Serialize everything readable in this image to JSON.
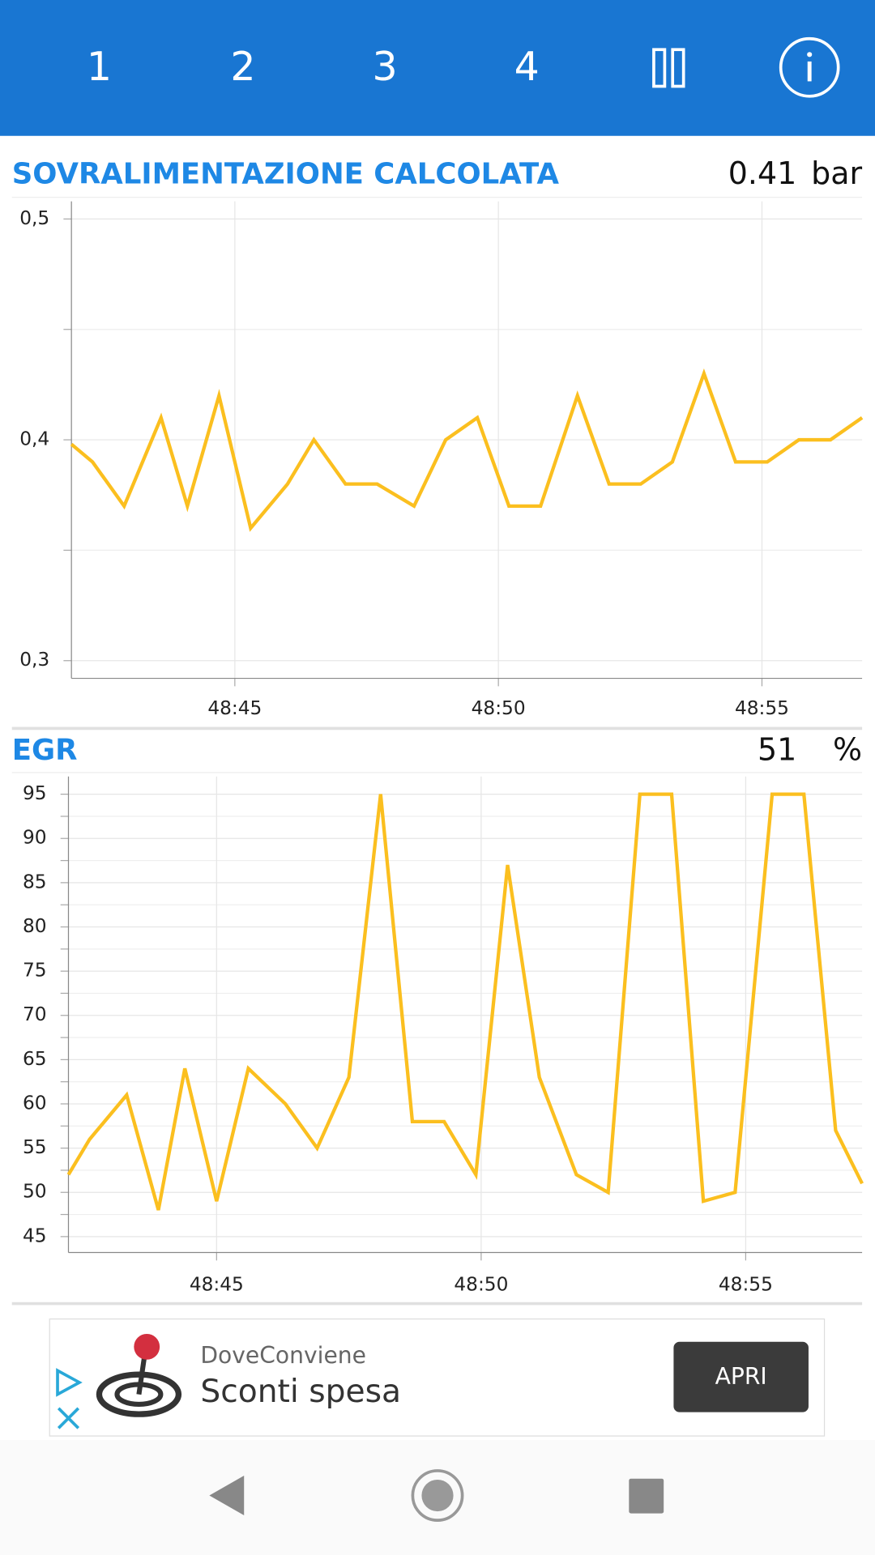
{
  "toolbar": {
    "tabs": [
      "1",
      "2",
      "3",
      "4"
    ]
  },
  "chart_data": [
    {
      "type": "line",
      "title": "SOVRALIMENTAZIONE CALCOLATA",
      "value": "0.41",
      "unit": "bar",
      "x": [
        2921.9,
        2922.3,
        2922.9,
        2923.6,
        2924.1,
        2924.7,
        2925.3,
        2926.0,
        2926.5,
        2927.1,
        2927.7,
        2928.4,
        2929.0,
        2929.6,
        2930.2,
        2930.8,
        2931.5,
        2932.1,
        2932.7,
        2933.3,
        2933.9,
        2934.5,
        2935.1,
        2935.7,
        2936.3,
        2936.9
      ],
      "series": [
        {
          "color": "#fbbf1f",
          "values": [
            0.398,
            0.39,
            0.37,
            0.41,
            0.37,
            0.42,
            0.36,
            0.38,
            0.4,
            0.38,
            0.38,
            0.37,
            0.4,
            0.41,
            0.37,
            0.37,
            0.42,
            0.38,
            0.38,
            0.39,
            0.43,
            0.39,
            0.39,
            0.4,
            0.4,
            0.41
          ]
        }
      ],
      "xlim": [
        2921.9,
        2936.9
      ],
      "ylim": [
        0.292,
        0.508
      ],
      "xticks": [
        {
          "value": 2925,
          "label": "48:45"
        },
        {
          "value": 2930,
          "label": "48:50"
        },
        {
          "value": 2935,
          "label": "48:55"
        }
      ],
      "yticks": [
        {
          "value": 0.3,
          "label": "0,3"
        },
        {
          "value": 0.4,
          "label": "0,4"
        },
        {
          "value": 0.5,
          "label": "0,5"
        }
      ],
      "minor_yticks": [
        0.35,
        0.45
      ],
      "grid": true
    },
    {
      "type": "line",
      "title": "EGR",
      "value": "51",
      "unit": "%",
      "x": [
        2922.2,
        2922.6,
        2923.3,
        2923.9,
        2924.4,
        2925.0,
        2925.6,
        2926.3,
        2926.9,
        2927.5,
        2928.1,
        2928.7,
        2929.3,
        2929.9,
        2930.5,
        2931.1,
        2931.8,
        2932.4,
        2933.0,
        2933.6,
        2934.2,
        2934.8,
        2935.5,
        2936.1,
        2936.7,
        2937.2
      ],
      "series": [
        {
          "color": "#fbbf1f",
          "values": [
            52,
            56,
            61,
            48,
            64,
            49,
            64,
            60,
            55,
            63,
            95,
            58,
            58,
            52,
            87,
            63,
            52,
            50,
            95,
            95,
            49,
            50,
            95,
            95,
            57,
            51
          ]
        }
      ],
      "xlim": [
        2922.2,
        2937.2
      ],
      "ylim": [
        43.2,
        97.0
      ],
      "xticks": [
        {
          "value": 2925,
          "label": "48:45"
        },
        {
          "value": 2930,
          "label": "48:50"
        },
        {
          "value": 2935,
          "label": "48:55"
        }
      ],
      "yticks": [
        45,
        50,
        55,
        60,
        65,
        70,
        75,
        80,
        85,
        90,
        95
      ],
      "minor_yticks": [
        47.5,
        52.5,
        57.5,
        62.5,
        67.5,
        72.5,
        77.5,
        82.5,
        87.5,
        92.5
      ],
      "grid": true
    }
  ],
  "ad": {
    "brand": "DoveConviene",
    "headline": "Sconti spesa",
    "button": "APRI"
  }
}
